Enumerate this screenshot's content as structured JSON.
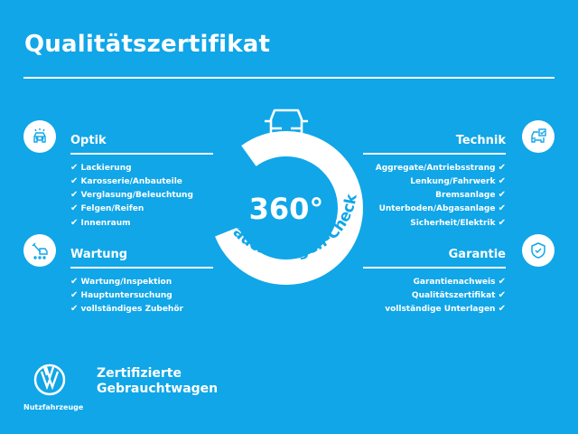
{
  "title": "Qualitätszertifikat",
  "center": {
    "value": "360°",
    "arc_text": "Gebrauchtwagen-Check",
    "icon": "car-rotate-icon"
  },
  "check_glyph": "✔",
  "sections": {
    "optik": {
      "title": "Optik",
      "icon": "car-lights-icon",
      "items": [
        "Lackierung",
        "Karosserie/Anbauteile",
        "Verglasung/Beleuchtung",
        "Felgen/Reifen",
        "Innenraum"
      ]
    },
    "wartung": {
      "title": "Wartung",
      "icon": "tools-van-icon",
      "items": [
        "Wartung/Inspektion",
        "Hauptuntersuchung",
        "vollständiges Zubehör"
      ]
    },
    "technik": {
      "title": "Technik",
      "icon": "car-checklist-icon",
      "items": [
        "Aggregate/Antriebsstrang",
        "Lenkung/Fahrwerk",
        "Bremsanlage",
        "Unterboden/Abgasanlage",
        "Sicherheit/Elektrik"
      ]
    },
    "garantie": {
      "title": "Garantie",
      "icon": "shield-check-icon",
      "items": [
        "Garantienachweis",
        "Qualitätszertifikat",
        "vollständige Unterlagen"
      ]
    }
  },
  "brand": {
    "line1": "Zertifizierte",
    "line2": "Gebrauchtwagen",
    "sub": "Nutzfahrzeuge",
    "logo": "vw-logo"
  },
  "colors": {
    "background": "#10a6e8",
    "foreground": "#ffffff"
  }
}
